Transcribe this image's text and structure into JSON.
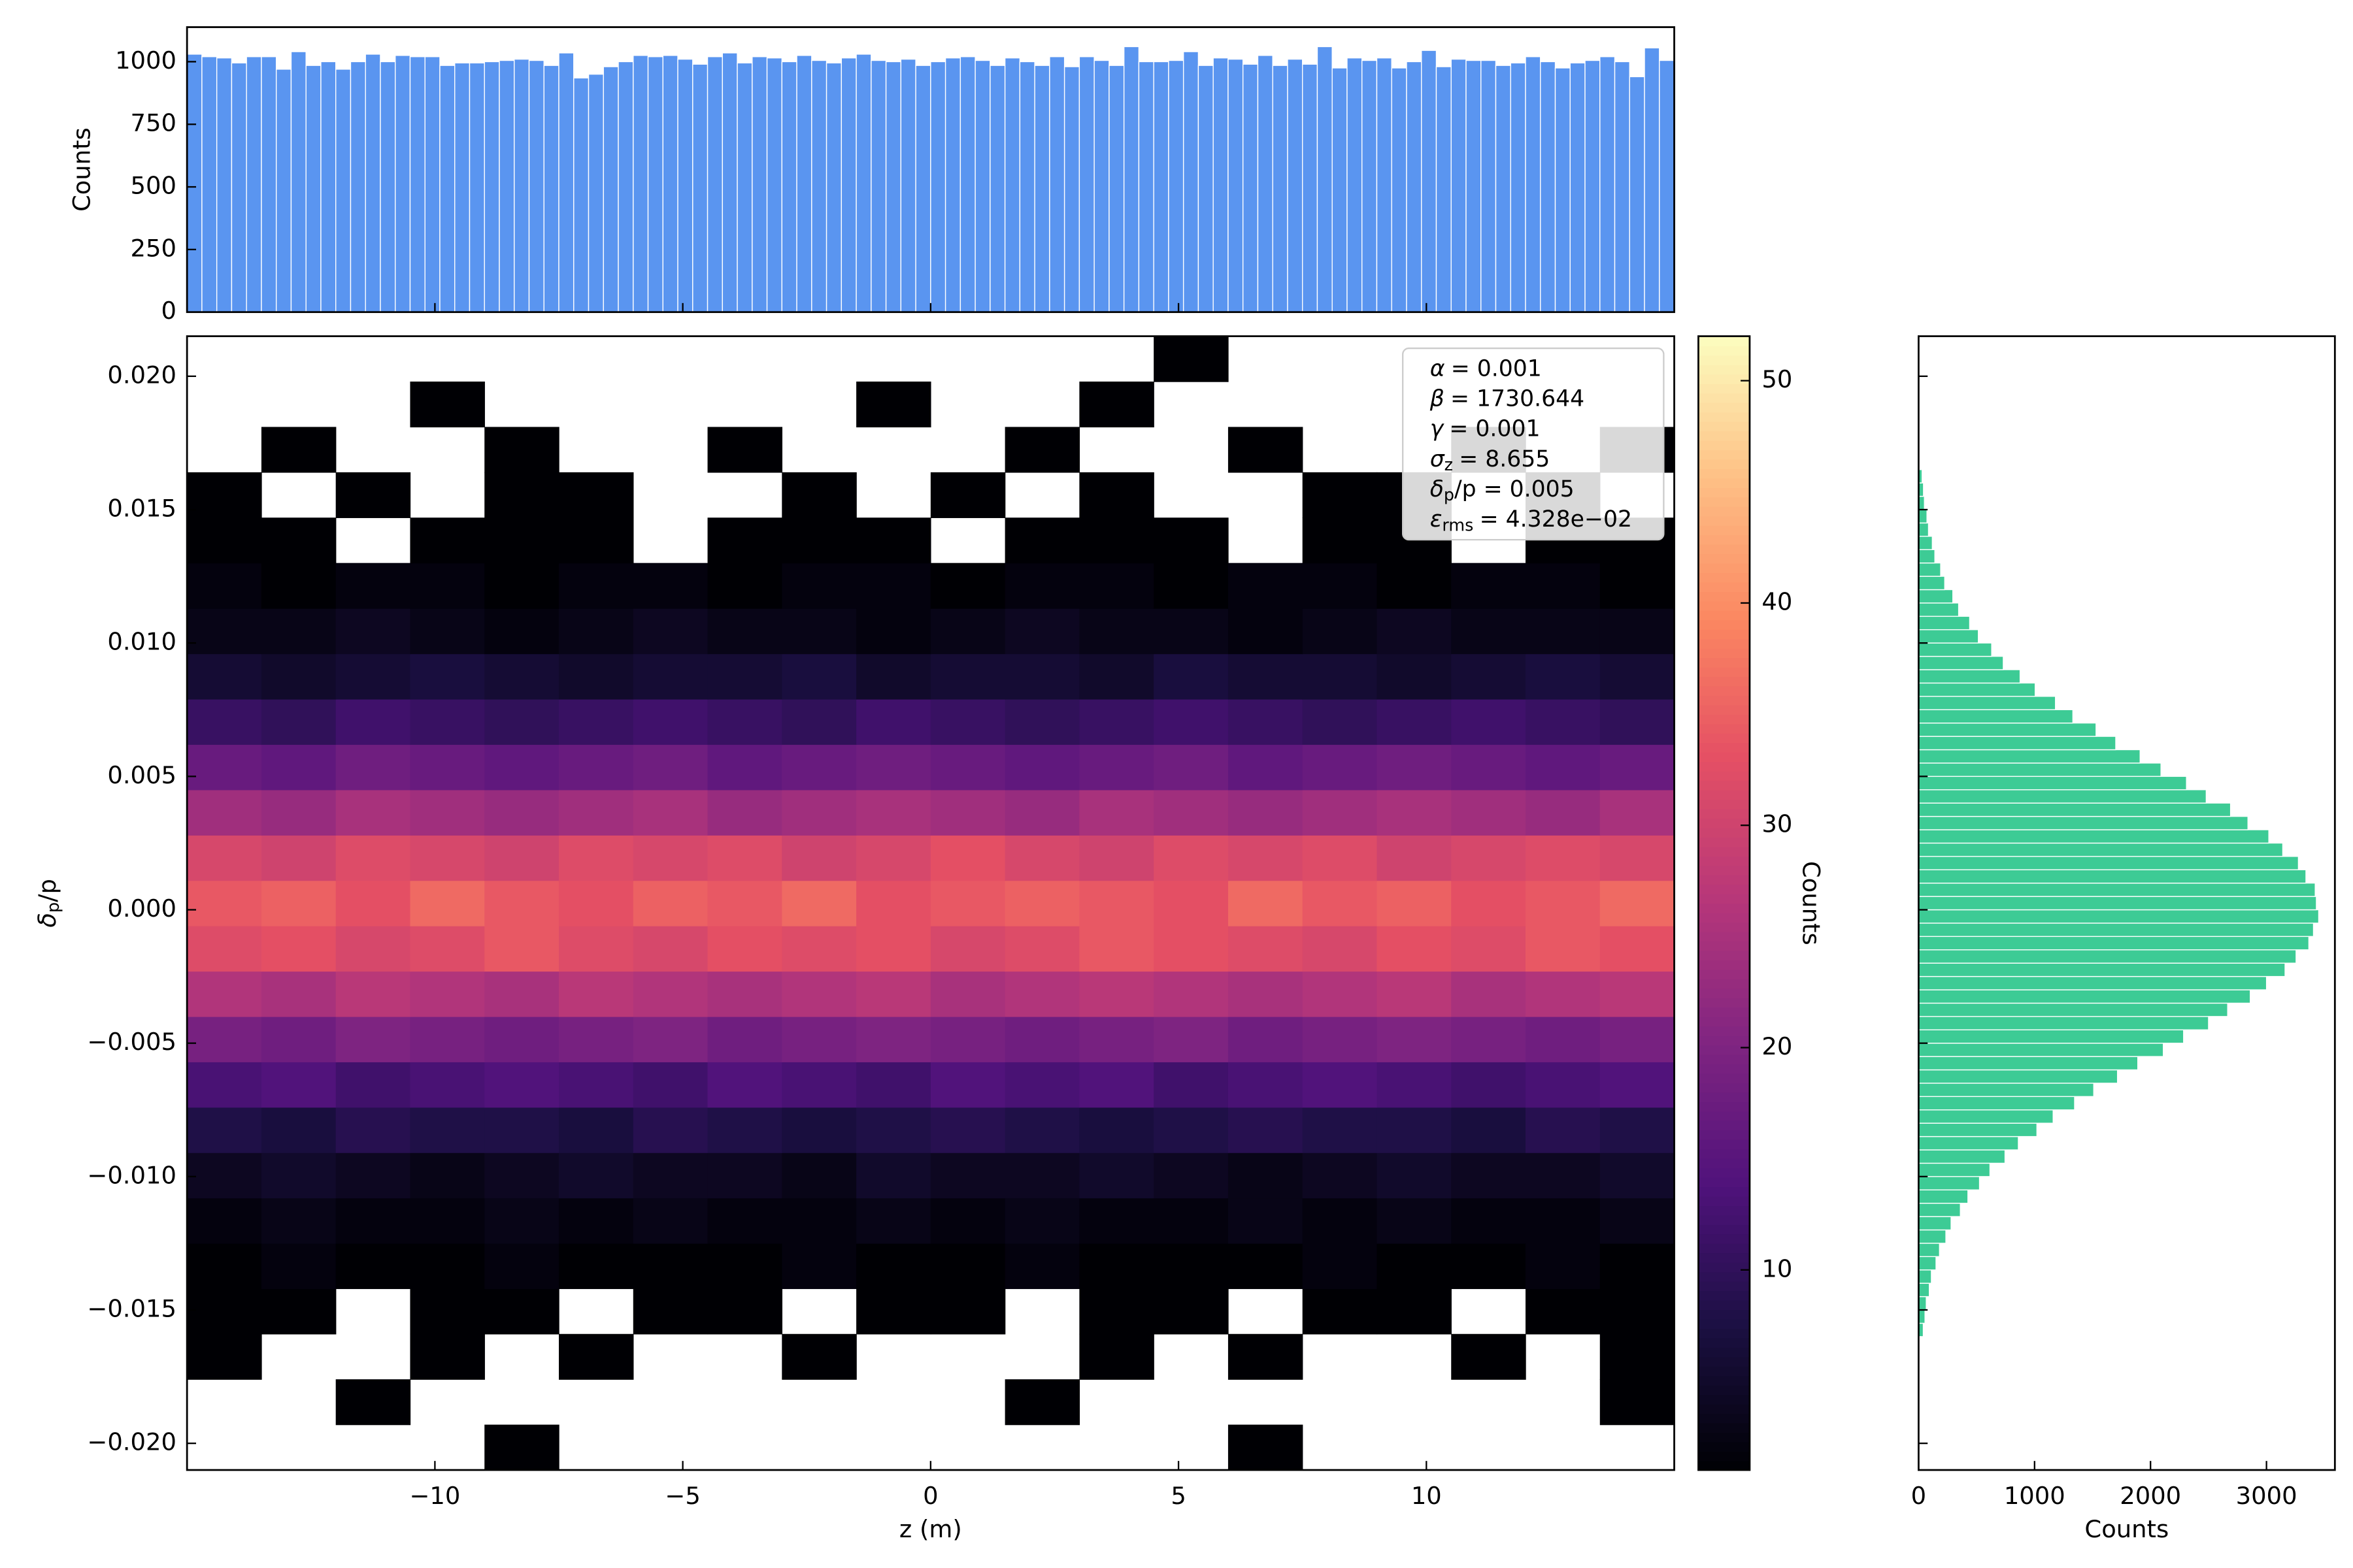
{
  "chart_data": [
    {
      "type": "histogram",
      "orientation": "vertical",
      "color": "#5a95f0",
      "ylabel": "Counts",
      "xlim": [
        -15,
        15
      ],
      "ylim": [
        0,
        1138
      ],
      "yticks": [
        0,
        250,
        500,
        750,
        1000
      ],
      "bins": [
        -15,
        -14.7,
        -14.4,
        -14.1,
        -13.8,
        -13.5,
        -13.2,
        -12.9,
        -12.6,
        -12.3,
        -12,
        -11.7,
        -11.4,
        -11.1,
        -10.8,
        -10.5,
        -10.2,
        -9.9,
        -9.6,
        -9.3,
        -9,
        -8.7,
        -8.4,
        -8.1,
        -7.8,
        -7.5,
        -7.2,
        -6.9,
        -6.6,
        -6.3,
        -6,
        -5.7,
        -5.4,
        -5.1,
        -4.8,
        -4.5,
        -4.2,
        -3.9,
        -3.6,
        -3.3,
        -3,
        -2.7,
        -2.4,
        -2.1,
        -1.8,
        -1.5,
        -1.2,
        -0.9,
        -0.6,
        -0.3,
        0,
        0.3,
        0.6,
        0.9,
        1.2,
        1.5,
        1.8,
        2.1,
        2.4,
        2.7,
        3,
        3.3,
        3.6,
        3.9,
        4.2,
        4.5,
        4.8,
        5.1,
        5.4,
        5.7,
        6,
        6.3,
        6.6,
        6.9,
        7.2,
        7.5,
        7.8,
        8.1,
        8.4,
        8.7,
        9,
        9.3,
        9.6,
        9.9,
        10.2,
        10.5,
        10.8,
        11.1,
        11.4,
        11.7,
        12,
        12.3,
        12.6,
        12.9,
        13.2,
        13.5,
        13.8,
        14.1,
        14.4,
        14.7,
        15
      ],
      "values": [
        1030,
        1020,
        1015,
        995,
        1020,
        1020,
        970,
        1040,
        985,
        1000,
        970,
        1000,
        1030,
        1000,
        1025,
        1020,
        1020,
        985,
        995,
        995,
        1000,
        1005,
        1010,
        1005,
        985,
        1035,
        935,
        950,
        980,
        1000,
        1025,
        1020,
        1025,
        1010,
        990,
        1020,
        1035,
        995,
        1020,
        1015,
        1000,
        1025,
        1005,
        995,
        1015,
        1030,
        1005,
        1000,
        1010,
        985,
        1000,
        1015,
        1020,
        1005,
        985,
        1015,
        1000,
        985,
        1020,
        980,
        1020,
        1005,
        985,
        1060,
        1000,
        1000,
        1005,
        1040,
        985,
        1015,
        1010,
        990,
        1025,
        985,
        1010,
        990,
        1060,
        975,
        1015,
        1005,
        1015,
        975,
        1000,
        1045,
        980,
        1010,
        1005,
        1005,
        985,
        995,
        1020,
        1000,
        975,
        995,
        1005,
        1020,
        1000,
        940,
        1055,
        1005
      ]
    },
    {
      "type": "heatmap",
      "xlabel": "z (m)",
      "ylabel": {
        "symbol": "δ",
        "sub": "p",
        "text": "/p"
      },
      "colormap": "magma",
      "clim": [
        1,
        52
      ],
      "colorbar_label": "Counts",
      "colorbar_ticks": [
        10,
        20,
        30,
        40,
        50
      ],
      "xlim": [
        -15,
        15
      ],
      "ylim": [
        -0.021,
        0.0215
      ],
      "xticks": [
        {
          "value": -10,
          "label": "−10"
        },
        {
          "value": -5,
          "label": "−5"
        },
        0,
        5,
        10
      ],
      "yticks": [
        {
          "value": -0.02,
          "label": "−0.020"
        },
        {
          "value": -0.015,
          "label": "−0.015"
        },
        {
          "value": -0.01,
          "label": "−0.010"
        },
        {
          "value": -0.005,
          "label": "−0.005"
        },
        {
          "value": 0,
          "label": "0.000"
        },
        {
          "value": 0.005,
          "label": "0.005"
        },
        {
          "value": 0.01,
          "label": "0.010"
        },
        {
          "value": 0.015,
          "label": "0.015"
        },
        {
          "value": 0.02,
          "label": "0.020"
        }
      ],
      "annotation": [
        {
          "symbol": "α",
          "text": "= 0.001"
        },
        {
          "symbol": "β",
          "text": "= 1730.644"
        },
        {
          "symbol": "γ",
          "text": "= 0.001"
        },
        {
          "symbol": "σ",
          "sub": "z",
          "text": "= 8.655"
        },
        {
          "symbol": "δ",
          "sub": "p",
          "text": "/p = 0.005"
        },
        {
          "symbol": "ε",
          "sub": "rms",
          "text": "= 4.328e−02"
        }
      ],
      "x_bins": [
        -15,
        -13.5,
        -12,
        -10.5,
        -9,
        -7.5,
        -6,
        -4.5,
        -3,
        -1.5,
        0,
        1.5,
        3,
        4.5,
        6,
        7.5,
        9,
        10.5,
        12,
        13.5,
        15
      ],
      "y_bins": [
        -0.021,
        -0.0193,
        -0.0176,
        -0.0159,
        -0.0142,
        -0.0125,
        -0.0108,
        -0.0091,
        -0.0074,
        -0.0057,
        -0.004,
        -0.0023,
        -0.0006,
        0.0011,
        0.0028,
        0.0045,
        0.0062,
        0.0079,
        0.0096,
        0.0113,
        0.013,
        0.0147,
        0.0164,
        0.0181,
        0.0198,
        0.0215
      ],
      "counts": [
        [
          null,
          null,
          null,
          null,
          1,
          null,
          null,
          null,
          null,
          null,
          null,
          null,
          null,
          null,
          1,
          null,
          null,
          null,
          null,
          null
        ],
        [
          null,
          null,
          1,
          null,
          null,
          null,
          null,
          null,
          null,
          null,
          null,
          1,
          null,
          null,
          null,
          null,
          null,
          null,
          null,
          1
        ],
        [
          1,
          null,
          null,
          1,
          null,
          1,
          null,
          null,
          1,
          null,
          null,
          null,
          1,
          null,
          1,
          null,
          null,
          1,
          null,
          1
        ],
        [
          1,
          1,
          null,
          1,
          1,
          null,
          1,
          1,
          null,
          1,
          1,
          null,
          1,
          1,
          null,
          1,
          1,
          null,
          1,
          1
        ],
        [
          1,
          2,
          1,
          1,
          2,
          1,
          1,
          1,
          2,
          1,
          1,
          2,
          1,
          1,
          1,
          2,
          1,
          1,
          2,
          1
        ],
        [
          2,
          3,
          2,
          2,
          3,
          2,
          3,
          2,
          2,
          3,
          2,
          3,
          2,
          2,
          3,
          2,
          3,
          2,
          2,
          3
        ],
        [
          4,
          5,
          4,
          3,
          4,
          5,
          4,
          4,
          3,
          5,
          4,
          4,
          5,
          4,
          3,
          4,
          5,
          4,
          4,
          5
        ],
        [
          8,
          7,
          9,
          8,
          8,
          7,
          9,
          8,
          7,
          8,
          9,
          8,
          7,
          8,
          9,
          8,
          8,
          7,
          9,
          8
        ],
        [
          13,
          14,
          12,
          13,
          14,
          13,
          12,
          14,
          13,
          12,
          14,
          13,
          14,
          12,
          13,
          14,
          13,
          12,
          13,
          14
        ],
        [
          19,
          18,
          20,
          19,
          18,
          19,
          20,
          18,
          19,
          20,
          19,
          18,
          19,
          20,
          18,
          19,
          20,
          19,
          18,
          19
        ],
        [
          26,
          25,
          27,
          26,
          25,
          27,
          26,
          25,
          26,
          27,
          25,
          26,
          27,
          26,
          25,
          26,
          27,
          25,
          26,
          27
        ],
        [
          32,
          33,
          31,
          32,
          34,
          32,
          31,
          33,
          32,
          33,
          31,
          32,
          34,
          33,
          32,
          31,
          33,
          32,
          34,
          33
        ],
        [
          34,
          35,
          33,
          36,
          34,
          33,
          35,
          34,
          36,
          33,
          34,
          35,
          34,
          33,
          36,
          34,
          35,
          33,
          34,
          36
        ],
        [
          31,
          30,
          32,
          31,
          30,
          32,
          31,
          32,
          30,
          31,
          33,
          31,
          30,
          32,
          31,
          32,
          30,
          31,
          32,
          31
        ],
        [
          24,
          23,
          25,
          24,
          23,
          24,
          25,
          23,
          24,
          25,
          24,
          23,
          25,
          24,
          23,
          24,
          25,
          24,
          23,
          25
        ],
        [
          17,
          16,
          18,
          17,
          16,
          17,
          18,
          16,
          17,
          18,
          17,
          16,
          17,
          18,
          16,
          17,
          18,
          17,
          16,
          17
        ],
        [
          11,
          10,
          12,
          11,
          10,
          11,
          12,
          11,
          10,
          12,
          11,
          10,
          11,
          12,
          11,
          10,
          11,
          12,
          11,
          10
        ],
        [
          6,
          5,
          6,
          7,
          6,
          5,
          6,
          6,
          7,
          5,
          6,
          6,
          5,
          7,
          6,
          6,
          5,
          6,
          7,
          6
        ],
        [
          3,
          3,
          4,
          3,
          2,
          3,
          4,
          3,
          3,
          2,
          3,
          4,
          3,
          3,
          2,
          3,
          4,
          3,
          3,
          3
        ],
        [
          2,
          1,
          2,
          2,
          1,
          2,
          2,
          1,
          2,
          2,
          1,
          2,
          2,
          1,
          2,
          2,
          1,
          2,
          2,
          1
        ],
        [
          1,
          1,
          null,
          1,
          1,
          1,
          null,
          1,
          1,
          1,
          null,
          1,
          1,
          1,
          null,
          1,
          1,
          null,
          1,
          1
        ],
        [
          1,
          null,
          1,
          null,
          1,
          1,
          null,
          null,
          1,
          null,
          1,
          null,
          1,
          null,
          null,
          1,
          1,
          null,
          1,
          null
        ],
        [
          null,
          1,
          null,
          null,
          1,
          null,
          null,
          1,
          null,
          null,
          null,
          1,
          null,
          null,
          1,
          null,
          null,
          1,
          null,
          1
        ],
        [
          null,
          null,
          null,
          1,
          null,
          null,
          null,
          null,
          null,
          1,
          null,
          null,
          1,
          null,
          null,
          null,
          null,
          null,
          null,
          null
        ],
        [
          null,
          null,
          null,
          null,
          null,
          null,
          null,
          null,
          null,
          null,
          null,
          null,
          null,
          1,
          null,
          null,
          null,
          null,
          null,
          null
        ]
      ]
    },
    {
      "type": "histogram",
      "orientation": "horizontal",
      "color": "#3dcb95",
      "xlabel": "Counts",
      "xlim": [
        0,
        3590
      ],
      "ylim": [
        -0.021,
        0.0215
      ],
      "xticks": [
        0,
        1000,
        2000,
        3000
      ],
      "bins": [
        -0.016,
        -0.0155,
        -0.015,
        -0.0145,
        -0.014,
        -0.0135,
        -0.013,
        -0.0125,
        -0.012,
        -0.0115,
        -0.011,
        -0.0105,
        -0.01,
        -0.0095,
        -0.009,
        -0.0085,
        -0.008,
        -0.0075,
        -0.007,
        -0.0065,
        -0.006,
        -0.0055,
        -0.005,
        -0.0045,
        -0.004,
        -0.0035,
        -0.003,
        -0.0025,
        -0.002,
        -0.0015,
        -0.001,
        -0.0005,
        0,
        0.0005,
        0.001,
        0.0015,
        0.002,
        0.0025,
        0.003,
        0.0035,
        0.004,
        0.0045,
        0.005,
        0.0055,
        0.006,
        0.0065,
        0.007,
        0.0075,
        0.008,
        0.0085,
        0.009,
        0.0095,
        0.01,
        0.0105,
        0.011,
        0.0115,
        0.012,
        0.0125,
        0.013,
        0.0135,
        0.014,
        0.0145,
        0.015,
        0.0155,
        0.016,
        0.0165
      ],
      "values": [
        40,
        55,
        66,
        92,
        110,
        150,
        180,
        235,
        280,
        360,
        425,
        525,
        615,
        745,
        860,
        1020,
        1160,
        1345,
        1510,
        1715,
        1890,
        2110,
        2285,
        2500,
        2665,
        2860,
        3000,
        3160,
        3255,
        3365,
        3405,
        3450,
        3430,
        3420,
        3340,
        3275,
        3140,
        3020,
        2840,
        2690,
        2480,
        2310,
        2090,
        1910,
        1700,
        1530,
        1330,
        1180,
        1005,
        875,
        730,
        630,
        515,
        440,
        345,
        295,
        225,
        190,
        140,
        118,
        85,
        72,
        50,
        42,
        30
      ]
    }
  ]
}
